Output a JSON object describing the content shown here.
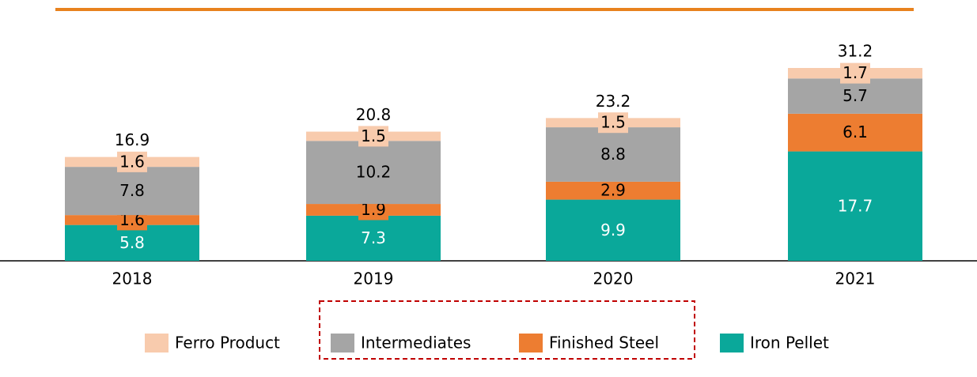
{
  "chart_data": {
    "type": "stacked_bar",
    "categories": [
      "2018",
      "2019",
      "2020",
      "2021"
    ],
    "series": [
      {
        "name": "Ferro Product",
        "color": "#f8cbad",
        "values": [
          1.6,
          1.5,
          1.5,
          1.7
        ]
      },
      {
        "name": "Intermediates",
        "color": "#a5a5a5",
        "values": [
          7.8,
          10.2,
          8.8,
          5.7
        ]
      },
      {
        "name": "Finished Steel",
        "color": "#ed7d31",
        "values": [
          1.6,
          1.9,
          2.9,
          6.1
        ]
      },
      {
        "name": "Iron Pellet",
        "color": "#0aa89a",
        "values": [
          5.8,
          7.3,
          9.9,
          17.7
        ]
      }
    ],
    "totals": [
      16.9,
      20.8,
      23.2,
      31.2
    ]
  }
}
